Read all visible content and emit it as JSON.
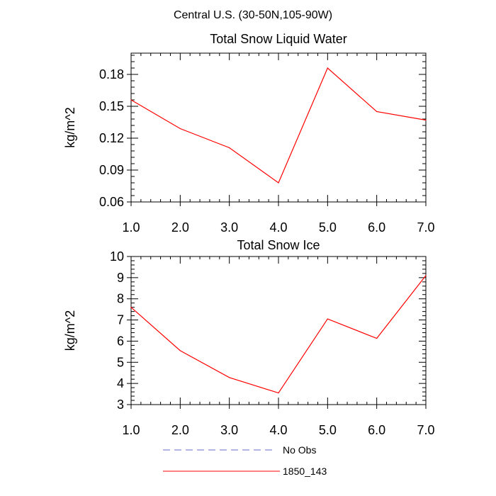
{
  "figure_title": "Central U.S. (30-50N,105-90W)",
  "legend": [
    {
      "label": "No Obs",
      "color": "#6a6ac8",
      "style": "dashed"
    },
    {
      "label": "1850_143",
      "color": "#ff0000",
      "style": "solid"
    }
  ],
  "chart_data": [
    {
      "type": "line",
      "title": "Total Snow Liquid Water",
      "xlabel": "",
      "ylabel": "kg/m^2",
      "xlim": [
        1.0,
        7.0
      ],
      "ylim": [
        0.06,
        0.2
      ],
      "xticks": [
        1,
        2,
        3,
        4,
        5,
        6,
        7
      ],
      "xtick_labels": [
        "1.0",
        "2.0",
        "3.0",
        "4.0",
        "5.0",
        "6.0",
        "7.0"
      ],
      "yticks": [
        0.06,
        0.09,
        0.12,
        0.15,
        0.18
      ],
      "ytick_labels": [
        "0.06",
        "0.09",
        "0.12",
        "0.15",
        "0.18"
      ],
      "yminor_step": 0.006,
      "xminor_step": 0.2,
      "series": [
        {
          "name": "1850_143",
          "color": "#ff0000",
          "x": [
            1,
            2,
            3,
            4,
            5,
            6,
            7
          ],
          "values": [
            0.156,
            0.129,
            0.111,
            0.078,
            0.186,
            0.145,
            0.137
          ]
        }
      ]
    },
    {
      "type": "line",
      "title": "Total Snow Ice",
      "xlabel": "",
      "ylabel": "kg/m^2",
      "xlim": [
        1.0,
        7.0
      ],
      "ylim": [
        3,
        10
      ],
      "xticks": [
        1,
        2,
        3,
        4,
        5,
        6,
        7
      ],
      "xtick_labels": [
        "1.0",
        "2.0",
        "3.0",
        "4.0",
        "5.0",
        "6.0",
        "7.0"
      ],
      "yticks": [
        3,
        4,
        5,
        6,
        7,
        8,
        9,
        10
      ],
      "ytick_labels": [
        "3",
        "4",
        "5",
        "6",
        "7",
        "8",
        "9",
        "10"
      ],
      "yminor_step": 0.2,
      "xminor_step": 0.2,
      "series": [
        {
          "name": "1850_143",
          "color": "#ff0000",
          "x": [
            1,
            2,
            3,
            4,
            5,
            6,
            7
          ],
          "values": [
            7.6,
            5.55,
            4.28,
            3.55,
            7.05,
            6.13,
            9.1
          ]
        }
      ]
    }
  ]
}
